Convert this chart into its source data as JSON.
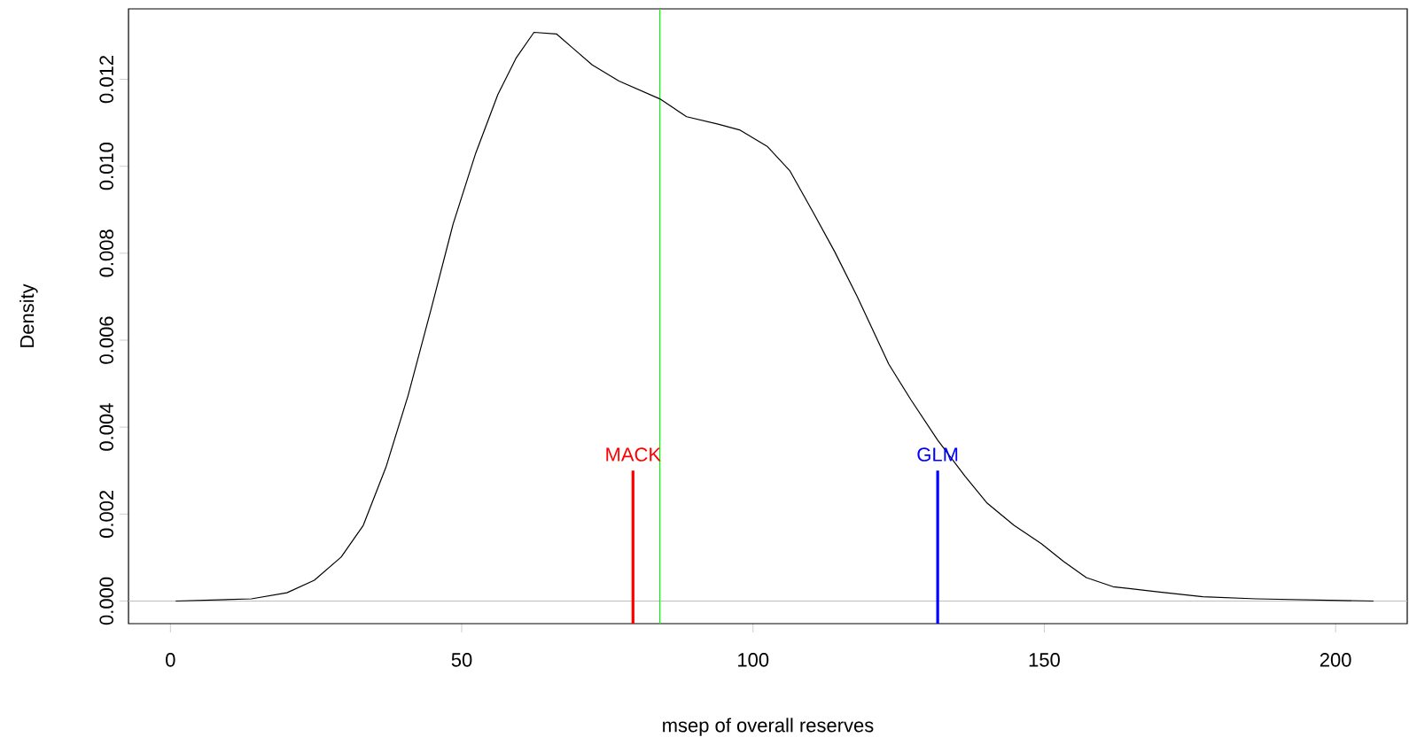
{
  "chart_data": {
    "type": "line",
    "xlabel": "msep of overall reserves",
    "ylabel": "Density",
    "xlim": [
      -7.2,
      212.3
    ],
    "ylim": [
      -0.00052,
      0.01362
    ],
    "xticks": [
      0,
      50,
      100,
      150,
      200
    ],
    "yticks": [
      {
        "value": 0,
        "label": "0.000"
      },
      {
        "value": 0.002,
        "label": "0.002"
      },
      {
        "value": 0.004,
        "label": "0.004"
      },
      {
        "value": 0.006,
        "label": "0.006"
      },
      {
        "value": 0.008,
        "label": "0.008"
      },
      {
        "value": 0.01,
        "label": "0.010"
      },
      {
        "value": 0.012,
        "label": "0.012"
      }
    ],
    "marker": "none",
    "line_style": "solid",
    "ref_lines": [
      {
        "axis": "y",
        "value": 0,
        "color": "#bebebe"
      },
      {
        "axis": "x",
        "value": 84.0,
        "color": "#00ff00"
      }
    ],
    "series": [
      {
        "color": "#000000",
        "x": [
          0.9,
          13.9,
          20.0,
          24.7,
          29.3,
          33.1,
          37.0,
          40.8,
          44.7,
          48.5,
          52.4,
          56.2,
          59.3,
          62.4,
          66.3,
          69.3,
          72.4,
          77.0,
          84.0,
          88.6,
          94.0,
          97.8,
          102.5,
          106.3,
          110.2,
          114.0,
          117.9,
          123.3,
          127.1,
          131.7,
          136.4,
          140.2,
          144.8,
          149.5,
          153.3,
          157.2,
          161.8,
          169.5,
          177.2,
          186.4,
          206.5
        ],
        "values": [
          0,
          5e-05,
          0.00019,
          0.00048,
          0.00101,
          0.00174,
          0.00308,
          0.00473,
          0.00669,
          0.00866,
          0.0103,
          0.01165,
          0.01248,
          0.01308,
          0.01304,
          0.01269,
          0.01233,
          0.01196,
          0.01155,
          0.01114,
          0.01097,
          0.01083,
          0.01045,
          0.0099,
          0.00897,
          0.00804,
          0.007,
          0.00545,
          0.00463,
          0.0037,
          0.00287,
          0.00225,
          0.00174,
          0.00132,
          0.00091,
          0.00054,
          0.00033,
          0.00021,
          0.0001,
          5e-05,
          0
        ]
      },
      {
        "name": "MACK",
        "color": "#ff0000",
        "x": [
          79.4,
          79.4
        ],
        "values": [
          -0.00052,
          0.003
        ]
      },
      {
        "name": "GLM",
        "color": "#0000ff",
        "x": [
          131.7,
          131.7
        ],
        "values": [
          -0.00052,
          0.003
        ]
      }
    ]
  }
}
